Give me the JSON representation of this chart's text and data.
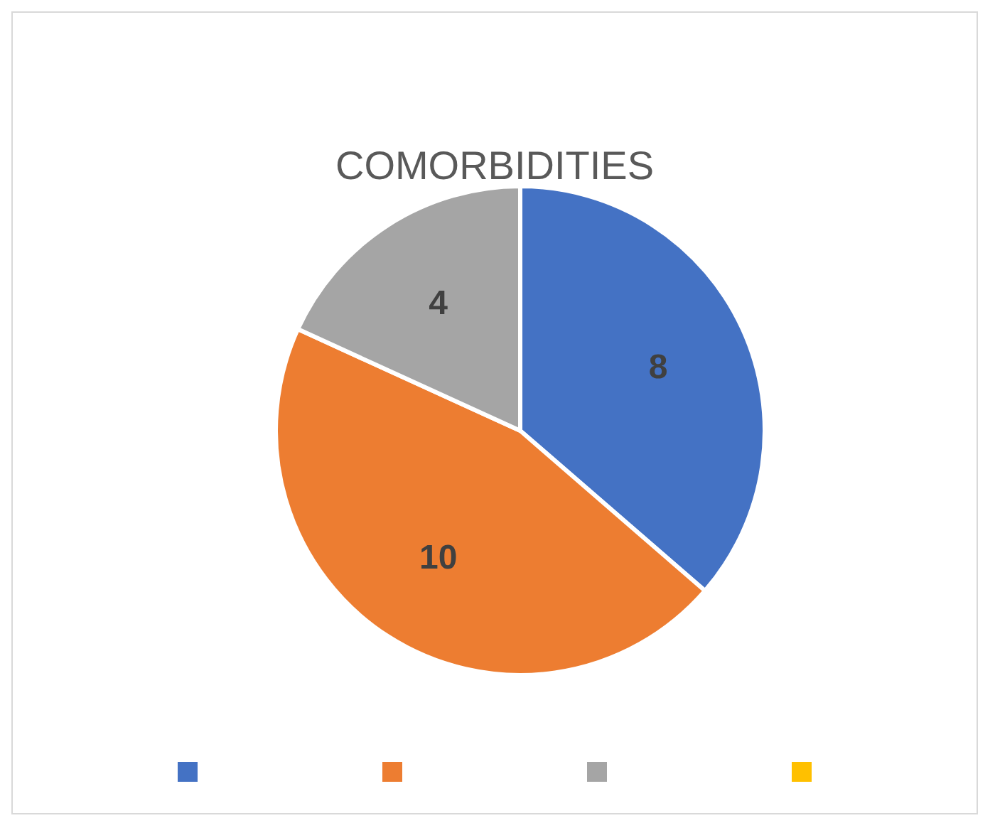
{
  "chart_data": {
    "type": "pie",
    "title": "COMORBIDITIES",
    "categories": [
      null,
      null,
      null,
      null
    ],
    "values": [
      8,
      10,
      4,
      null
    ],
    "colors": [
      "#4472c4",
      "#ed7d31",
      "#a5a5a5",
      "#ffc000"
    ],
    "data_labels": true
  }
}
